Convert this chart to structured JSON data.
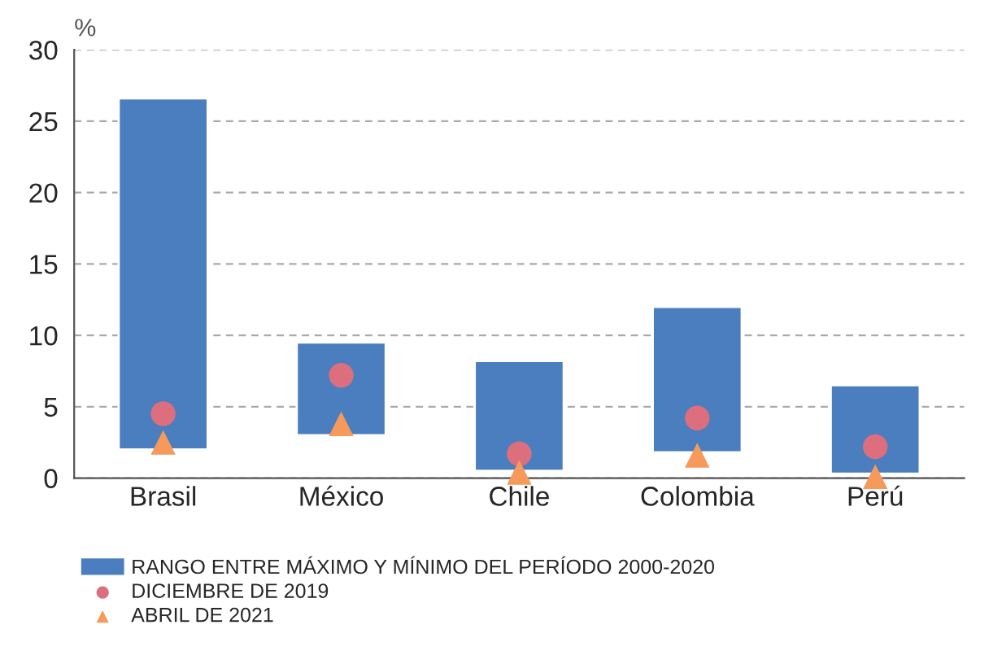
{
  "chart_data": {
    "type": "bar",
    "ylabel": "%",
    "categories": [
      "Brasil",
      "México",
      "Chile",
      "Colombia",
      "Perú"
    ],
    "ylim": [
      0,
      30
    ],
    "yticks": [
      0,
      5,
      10,
      15,
      20,
      25,
      30
    ],
    "grid": "y",
    "legend": "bottom",
    "series": [
      {
        "name": "RANGO ENTRE MÁXIMO Y MÍNIMO DEL PERÍODO 2000-2020",
        "color": "#4a7ebf",
        "base": [
          2.0,
          3.0,
          0.5,
          1.8,
          0.3
        ],
        "values": [
          24.6,
          6.5,
          7.7,
          10.2,
          6.2
        ]
      },
      {
        "name": "DICIEMBRE DE 2019",
        "type": "scatter",
        "marker": "circle",
        "color": "#dc6e7e",
        "x": [
          "Brasil",
          "México",
          "Chile",
          "Colombia",
          "Perú"
        ],
        "values": [
          4.5,
          7.2,
          1.7,
          4.2,
          2.2
        ]
      },
      {
        "name": "ABRIL DE 2021",
        "type": "scatter",
        "marker": "triangle",
        "color": "#f59a5b",
        "x": [
          "Brasil",
          "México",
          "Chile",
          "Colombia",
          "Perú"
        ],
        "values": [
          2.5,
          3.8,
          0.4,
          1.6,
          0.1
        ]
      }
    ]
  }
}
